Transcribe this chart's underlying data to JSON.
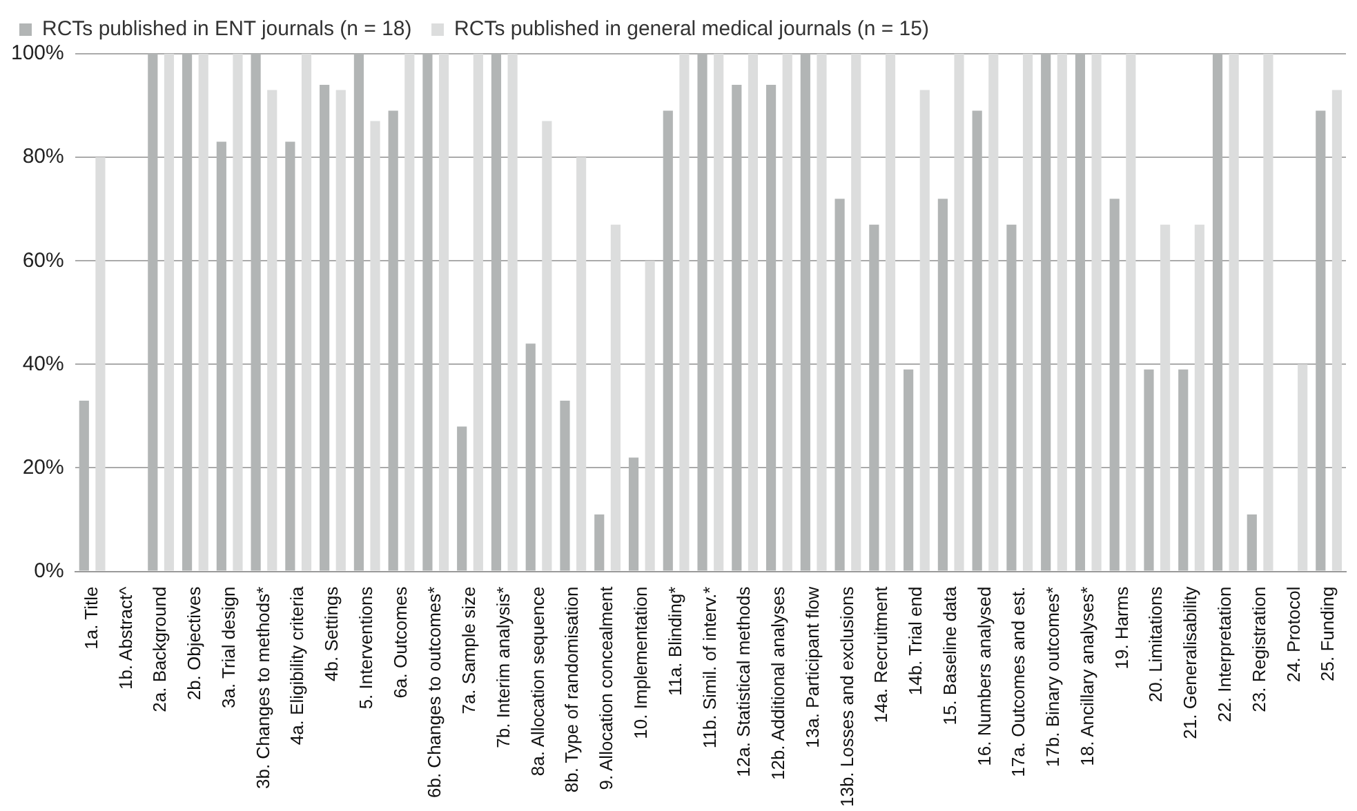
{
  "chart_data": {
    "type": "bar",
    "categories": [
      "1a. Title",
      "1b. Abstract^",
      "2a. Background",
      "2b. Objectives",
      "3a. Trial design",
      "3b. Changes to methods*",
      "4a. Eligibility criteria",
      "4b. Settings",
      "5. Interventions",
      "6a. Outcomes",
      "6b. Changes to outcomes*",
      "7a. Sample size",
      "7b. Interim analysis*",
      "8a. Allocation sequence",
      "8b. Type of randomisation",
      "9. Allocation concealment",
      "10. Implementation",
      "11a. Blinding*",
      "11b. Simil. of interv.*",
      "12a. Statistical methods",
      "12b. Additional analyses",
      "13a. Participant flow",
      "13b. Losses and exclusions",
      "14a. Recruitment",
      "14b. Trial end",
      "15. Baseline data",
      "16. Numbers analysed",
      "17a. Outcomes and est.",
      "17b. Binary outcomes*",
      "18. Ancillary analyses*",
      "19. Harms",
      "20. Limitations",
      "21. Generalisability",
      "22. Interpretation",
      "23. Registration",
      "24. Protocol",
      "25. Funding"
    ],
    "series": [
      {
        "name": "RCTs published in ENT journals (n = 18)",
        "color": "#b2b5b5",
        "values": [
          33,
          0,
          100,
          100,
          83,
          100,
          83,
          94,
          100,
          89,
          100,
          28,
          100,
          44,
          33,
          11,
          22,
          89,
          100,
          94,
          94,
          100,
          72,
          67,
          39,
          72,
          89,
          67,
          100,
          100,
          72,
          39,
          39,
          100,
          11,
          0,
          89
        ]
      },
      {
        "name": "RCTs published in general medical journals (n = 15)",
        "color": "#dcdddd",
        "values": [
          80,
          0,
          100,
          100,
          100,
          93,
          100,
          93,
          87,
          100,
          100,
          100,
          100,
          87,
          80,
          67,
          60,
          100,
          100,
          100,
          100,
          100,
          100,
          100,
          93,
          100,
          100,
          100,
          100,
          100,
          100,
          67,
          67,
          100,
          100,
          40,
          93
        ]
      }
    ],
    "ylim": [
      0,
      100
    ],
    "yticks": [
      {
        "value": 0,
        "label": "0%"
      },
      {
        "value": 20,
        "label": "20%"
      },
      {
        "value": 40,
        "label": "40%"
      },
      {
        "value": 60,
        "label": "60%"
      },
      {
        "value": 80,
        "label": "80%"
      },
      {
        "value": 100,
        "label": "100%"
      }
    ],
    "grid": "y",
    "legend": "top"
  }
}
